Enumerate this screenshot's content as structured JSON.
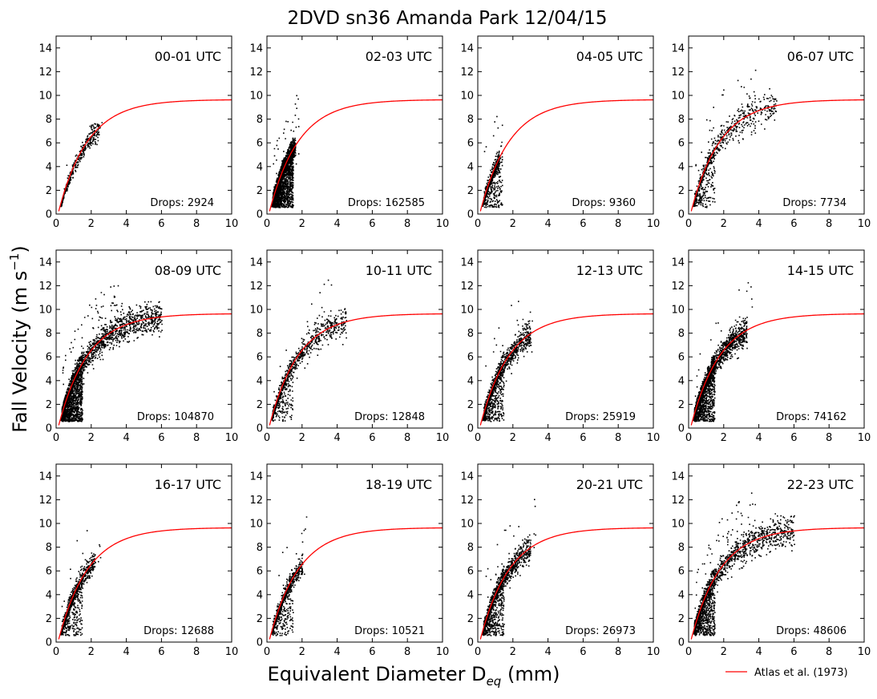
{
  "figure": {
    "title": "2DVD sn36 Amanda Park 12/04/15",
    "xlabel": "Equivalent Diameter D",
    "xlabel_sub": "eq",
    "xlabel_unit": " (mm)",
    "ylabel": "Fall Velocity (m s",
    "ylabel_sup": "−1",
    "ylabel_end": ")"
  },
  "legend": {
    "label": "Atlas et al. (1973)",
    "color": "#ff0000",
    "placement": "bottom-right"
  },
  "chart_data": {
    "type": "scatter",
    "xlim": [
      0,
      10
    ],
    "ylim": [
      0,
      15
    ],
    "xticks": [
      "0",
      "2",
      "4",
      "6",
      "8",
      "10"
    ],
    "yticks": [
      "0",
      "2",
      "4",
      "6",
      "8",
      "10",
      "12",
      "14"
    ],
    "point_color": "#000000",
    "grid": false,
    "fit_curve": {
      "name": "Atlas et al. (1973)",
      "color": "#ff0000",
      "formula": "v = 9.65 - 10.3*exp(-0.6*D)",
      "a": 9.65,
      "b": 10.3,
      "c": 0.6
    },
    "panels": [
      {
        "title": "00-01 UTC",
        "drops_label": "Drops: 2924",
        "drops": 2924,
        "dmax": 2.5,
        "big_frac": 0.0,
        "outliers": 3,
        "low_frac": 0.0
      },
      {
        "title": "02-03 UTC",
        "drops_label": "Drops: 162585",
        "drops": 162585,
        "dmax": 1.6,
        "big_frac": 0.0,
        "outliers": 40,
        "low_frac": 0.5
      },
      {
        "title": "04-05 UTC",
        "drops_label": "Drops: 9360",
        "drops": 9360,
        "dmax": 1.2,
        "big_frac": 0.0,
        "outliers": 10,
        "low_frac": 0.35
      },
      {
        "title": "06-07 UTC",
        "drops_label": "Drops: 7734",
        "drops": 7734,
        "dmax": 5.0,
        "big_frac": 0.15,
        "outliers": 60,
        "low_frac": 0.3
      },
      {
        "title": "08-09 UTC",
        "drops_label": "Drops: 104870",
        "drops": 104870,
        "dmax": 6.0,
        "big_frac": 0.22,
        "outliers": 120,
        "low_frac": 0.45
      },
      {
        "title": "10-11 UTC",
        "drops_label": "Drops: 12848",
        "drops": 12848,
        "dmax": 4.5,
        "big_frac": 0.15,
        "outliers": 30,
        "low_frac": 0.2
      },
      {
        "title": "12-13 UTC",
        "drops_label": "Drops: 25919",
        "drops": 25919,
        "dmax": 3.0,
        "big_frac": 0.05,
        "outliers": 30,
        "low_frac": 0.3
      },
      {
        "title": "14-15 UTC",
        "drops_label": "Drops: 74162",
        "drops": 74162,
        "dmax": 3.3,
        "big_frac": 0.08,
        "outliers": 40,
        "low_frac": 0.4
      },
      {
        "title": "16-17 UTC",
        "drops_label": "Drops: 12688",
        "drops": 12688,
        "dmax": 2.2,
        "big_frac": 0.02,
        "outliers": 20,
        "low_frac": 0.3
      },
      {
        "title": "18-19 UTC",
        "drops_label": "Drops: 10521",
        "drops": 10521,
        "dmax": 2.0,
        "big_frac": 0.02,
        "outliers": 15,
        "low_frac": 0.25
      },
      {
        "title": "20-21 UTC",
        "drops_label": "Drops: 26973",
        "drops": 26973,
        "dmax": 3.0,
        "big_frac": 0.05,
        "outliers": 40,
        "low_frac": 0.35
      },
      {
        "title": "22-23 UTC",
        "drops_label": "Drops: 48606",
        "drops": 48606,
        "dmax": 6.0,
        "big_frac": 0.25,
        "outliers": 90,
        "low_frac": 0.4
      }
    ]
  }
}
